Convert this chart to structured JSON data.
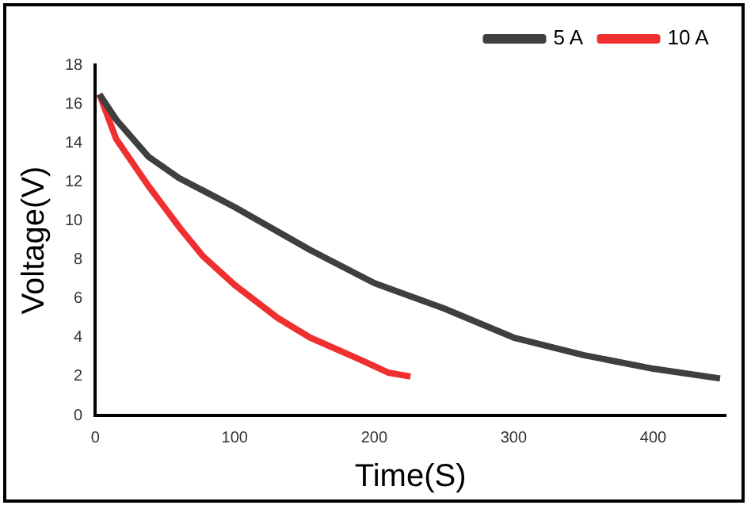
{
  "chart_data": {
    "type": "line",
    "xlabel": "Time(S)",
    "ylabel": "Voltage(V)",
    "xlim": [
      0,
      452
    ],
    "xticks": [
      0,
      100,
      200,
      300,
      400
    ],
    "ylim": [
      0,
      18
    ],
    "yticks": [
      0,
      2,
      4,
      6,
      8,
      10,
      12,
      14,
      16,
      18
    ],
    "grid": false,
    "legend": "top right",
    "marker": "none",
    "line_style": "solid",
    "series": [
      {
        "name": "5 A",
        "color": "#3f3f3f",
        "x": [
          3,
          15,
          38,
          60,
          100,
          154,
          200,
          250,
          300,
          350,
          400,
          448
        ],
        "values": [
          16.5,
          15.2,
          13.3,
          12.2,
          10.7,
          8.5,
          6.8,
          5.5,
          4.0,
          3.1,
          2.4,
          1.9
        ]
      },
      {
        "name": "10 A",
        "color": "#f03030",
        "x": [
          3,
          15,
          38,
          61,
          77,
          100,
          131,
          154,
          189,
          210,
          226
        ],
        "values": [
          16.5,
          14.2,
          11.8,
          9.6,
          8.2,
          6.7,
          5.0,
          4.0,
          2.9,
          2.2,
          2.0
        ]
      }
    ]
  }
}
